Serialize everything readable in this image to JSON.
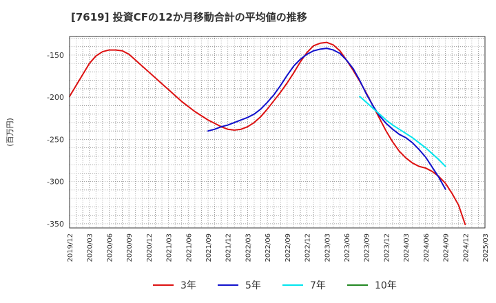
{
  "chart_data": {
    "type": "line",
    "title": "[7619]  投資CFの12か月移動合計の平均値の推移",
    "ylabel": "(百万円)",
    "xlabel": "",
    "ylim": [
      -355,
      -128
    ],
    "yticks": [
      -150,
      -200,
      -250,
      -300,
      -350
    ],
    "x_tick_labels": [
      "2019/12",
      "2020/03",
      "2020/06",
      "2020/09",
      "2020/12",
      "2021/03",
      "2021/06",
      "2021/09",
      "2021/12",
      "2022/03",
      "2022/06",
      "2022/09",
      "2022/12",
      "2023/03",
      "2023/06",
      "2023/09",
      "2023/12",
      "2024/03",
      "2024/06",
      "2024/09",
      "2024/12",
      "2025/03"
    ],
    "grid": true,
    "legend_position": "bottom",
    "series": [
      {
        "name": "3年",
        "color": "#dd1111",
        "points": [
          [
            "2019/12",
            -199
          ],
          [
            "2020/01",
            -186
          ],
          [
            "2020/02",
            -173
          ],
          [
            "2020/03",
            -160
          ],
          [
            "2020/04",
            -151
          ],
          [
            "2020/05",
            -146
          ],
          [
            "2020/06",
            -144
          ],
          [
            "2020/07",
            -144
          ],
          [
            "2020/08",
            -145
          ],
          [
            "2020/09",
            -149
          ],
          [
            "2020/10",
            -156
          ],
          [
            "2020/11",
            -163
          ],
          [
            "2020/12",
            -170
          ],
          [
            "2021/01",
            -177
          ],
          [
            "2021/02",
            -184
          ],
          [
            "2021/03",
            -191
          ],
          [
            "2021/04",
            -198
          ],
          [
            "2021/05",
            -205
          ],
          [
            "2021/06",
            -211
          ],
          [
            "2021/07",
            -217
          ],
          [
            "2021/08",
            -222
          ],
          [
            "2021/09",
            -227
          ],
          [
            "2021/10",
            -231
          ],
          [
            "2021/11",
            -235
          ],
          [
            "2021/12",
            -238
          ],
          [
            "2022/01",
            -239
          ],
          [
            "2022/02",
            -238
          ],
          [
            "2022/03",
            -235
          ],
          [
            "2022/04",
            -230
          ],
          [
            "2022/05",
            -223
          ],
          [
            "2022/06",
            -214
          ],
          [
            "2022/07",
            -204
          ],
          [
            "2022/08",
            -194
          ],
          [
            "2022/09",
            -183
          ],
          [
            "2022/10",
            -171
          ],
          [
            "2022/11",
            -158
          ],
          [
            "2022/12",
            -147
          ],
          [
            "2023/01",
            -139
          ],
          [
            "2023/02",
            -136
          ],
          [
            "2023/03",
            -135
          ],
          [
            "2023/04",
            -138
          ],
          [
            "2023/05",
            -145
          ],
          [
            "2023/06",
            -156
          ],
          [
            "2023/07",
            -168
          ],
          [
            "2023/08",
            -181
          ],
          [
            "2023/09",
            -195
          ],
          [
            "2023/10",
            -210
          ],
          [
            "2023/11",
            -225
          ],
          [
            "2023/12",
            -240
          ],
          [
            "2024/01",
            -253
          ],
          [
            "2024/02",
            -264
          ],
          [
            "2024/03",
            -272
          ],
          [
            "2024/04",
            -278
          ],
          [
            "2024/05",
            -282
          ],
          [
            "2024/06",
            -284
          ],
          [
            "2024/07",
            -288
          ],
          [
            "2024/08",
            -294
          ],
          [
            "2024/09",
            -302
          ],
          [
            "2024/10",
            -314
          ],
          [
            "2024/11",
            -328
          ],
          [
            "2024/12",
            -351
          ]
        ]
      },
      {
        "name": "5年",
        "color": "#1111cc",
        "points": [
          [
            "2021/09",
            -240
          ],
          [
            "2021/10",
            -238
          ],
          [
            "2021/11",
            -235
          ],
          [
            "2021/12",
            -233
          ],
          [
            "2022/01",
            -230
          ],
          [
            "2022/02",
            -227
          ],
          [
            "2022/03",
            -224
          ],
          [
            "2022/04",
            -220
          ],
          [
            "2022/05",
            -214
          ],
          [
            "2022/06",
            -206
          ],
          [
            "2022/07",
            -197
          ],
          [
            "2022/08",
            -186
          ],
          [
            "2022/09",
            -174
          ],
          [
            "2022/10",
            -163
          ],
          [
            "2022/11",
            -155
          ],
          [
            "2022/12",
            -149
          ],
          [
            "2023/01",
            -145
          ],
          [
            "2023/02",
            -143
          ],
          [
            "2023/03",
            -142
          ],
          [
            "2023/04",
            -144
          ],
          [
            "2023/05",
            -148
          ],
          [
            "2023/06",
            -156
          ],
          [
            "2023/07",
            -166
          ],
          [
            "2023/08",
            -180
          ],
          [
            "2023/09",
            -196
          ],
          [
            "2023/10",
            -210
          ],
          [
            "2023/11",
            -222
          ],
          [
            "2023/12",
            -231
          ],
          [
            "2024/01",
            -238
          ],
          [
            "2024/02",
            -244
          ],
          [
            "2024/03",
            -248
          ],
          [
            "2024/04",
            -254
          ],
          [
            "2024/05",
            -262
          ],
          [
            "2024/06",
            -271
          ],
          [
            "2024/07",
            -283
          ],
          [
            "2024/08",
            -295
          ],
          [
            "2024/09",
            -309
          ]
        ]
      },
      {
        "name": "7年",
        "color": "#00e5ee",
        "points": [
          [
            "2023/08",
            -199
          ],
          [
            "2023/09",
            -206
          ],
          [
            "2023/10",
            -213
          ],
          [
            "2023/11",
            -220
          ],
          [
            "2023/12",
            -227
          ],
          [
            "2024/01",
            -233
          ],
          [
            "2024/02",
            -238
          ],
          [
            "2024/03",
            -243
          ],
          [
            "2024/04",
            -248
          ],
          [
            "2024/05",
            -254
          ],
          [
            "2024/06",
            -260
          ],
          [
            "2024/07",
            -267
          ],
          [
            "2024/08",
            -274
          ],
          [
            "2024/09",
            -282
          ]
        ]
      },
      {
        "name": "10年",
        "color": "#228822",
        "points": []
      }
    ]
  }
}
